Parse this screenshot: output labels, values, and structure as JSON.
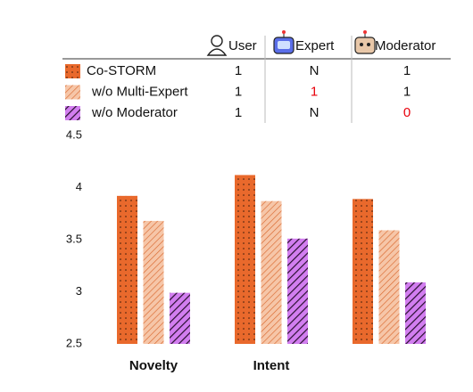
{
  "chart_data": {
    "type": "bar",
    "role_columns": [
      "User",
      "Expert",
      "Moderator"
    ],
    "categories": [
      "Novelty",
      "Intent",
      null
    ],
    "series": [
      {
        "name": "Co-STORM",
        "color": "#e9692c",
        "pattern": "dots",
        "roles": [
          "1",
          "N",
          "1"
        ],
        "role_colors": [
          "#111111",
          "#111111",
          "#111111"
        ],
        "values": [
          3.92,
          4.12,
          3.89
        ]
      },
      {
        "name": "w/o Multi-Expert",
        "color": "#f6c6a8",
        "pattern": "hatch",
        "roles": [
          "1",
          "1",
          "1"
        ],
        "role_colors": [
          "#111111",
          "#e8000b",
          "#111111"
        ],
        "values": [
          3.68,
          3.87,
          3.59
        ]
      },
      {
        "name": "w/o Moderator",
        "color": "#d27ef0",
        "pattern": "stripes",
        "roles": [
          "1",
          "N",
          "0"
        ],
        "role_colors": [
          "#111111",
          "#111111",
          "#e8000b"
        ],
        "values": [
          2.99,
          3.51,
          3.09
        ]
      }
    ],
    "ylim": [
      2.5,
      4.5
    ],
    "yticks": [
      2.5,
      3,
      3.5,
      4,
      4.5
    ]
  }
}
